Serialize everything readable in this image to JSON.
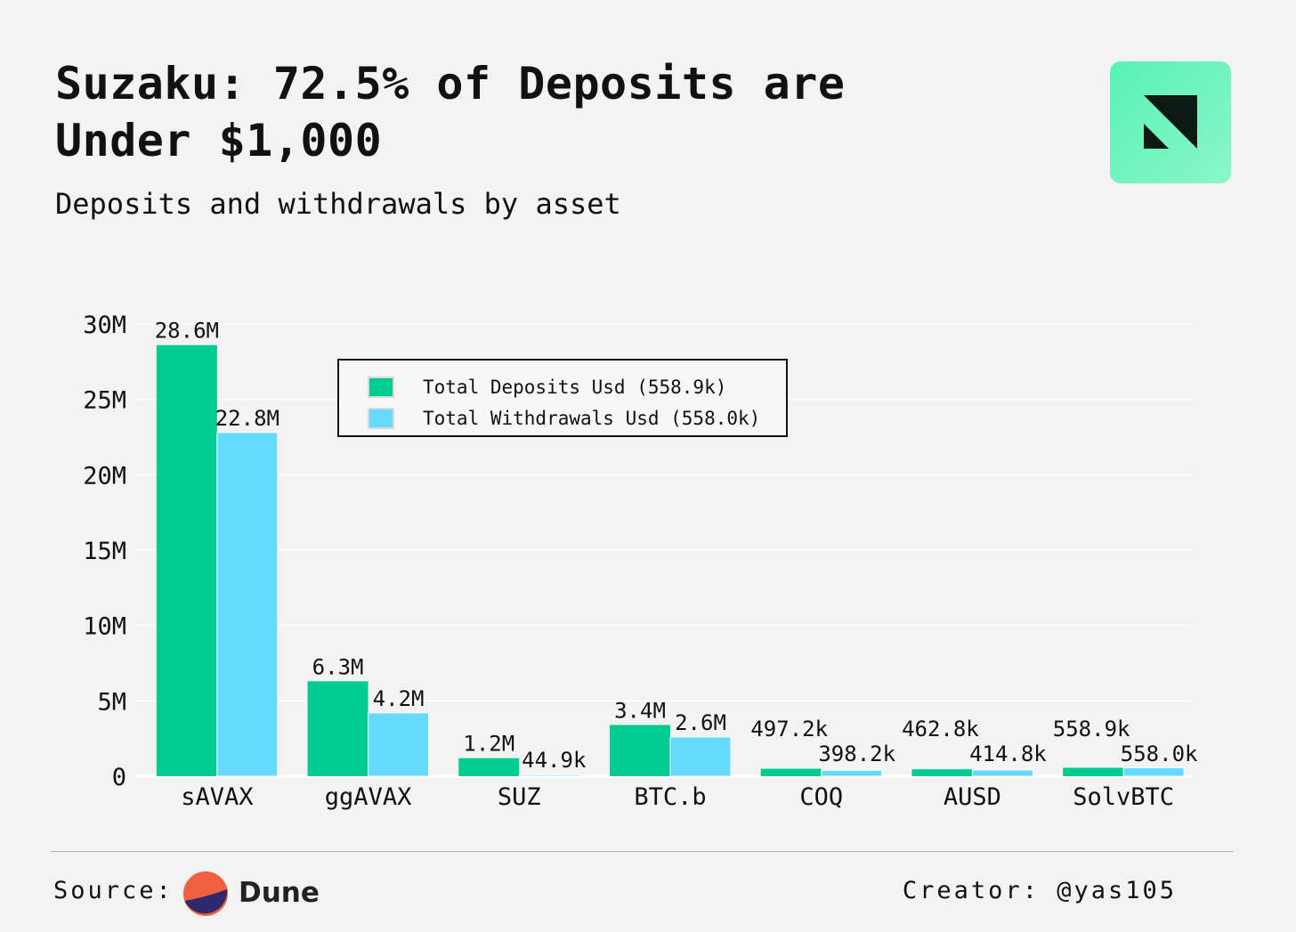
{
  "header": {
    "title": "Suzaku: 72.5% of Deposits are Under $1,000",
    "subtitle": "Deposits and withdrawals by asset",
    "logo_icon": "suzaku-logo-icon"
  },
  "legend": [
    {
      "label": "Total Deposits Usd (558.9k)",
      "color": "#00cc92"
    },
    {
      "label": "Total Withdrawals Usd (558.0k)",
      "color": "#66d9ff"
    }
  ],
  "footer": {
    "source_label": "Source:",
    "source_name": "Dune",
    "source_icon": "dune-logo-icon",
    "creator": "Creator: @yas105"
  },
  "chart_data": {
    "type": "bar",
    "title": "",
    "xlabel": "",
    "ylabel": "",
    "ylim": [
      0,
      30000000
    ],
    "yticks": [
      0,
      5000000,
      10000000,
      15000000,
      20000000,
      25000000,
      30000000
    ],
    "ytick_labels": [
      "0",
      "5M",
      "10M",
      "15M",
      "20M",
      "25M",
      "30M"
    ],
    "grid": "horizontal",
    "legend_position": "top-center",
    "categories": [
      "sAVAX",
      "ggAVAX",
      "SUZ",
      "BTC.b",
      "COQ",
      "AUSD",
      "SolvBTC"
    ],
    "series": [
      {
        "name": "Total Deposits Usd (558.9k)",
        "color": "#00cc92",
        "values": [
          28600000,
          6300000,
          1200000,
          3400000,
          497200,
          462800,
          558900
        ],
        "labels": [
          "28.6M",
          "6.3M",
          "1.2M",
          "3.4M",
          "497.2k",
          "462.8k",
          "558.9k"
        ]
      },
      {
        "name": "Total Withdrawals Usd (558.0k)",
        "color": "#66d9ff",
        "values": [
          22800000,
          4200000,
          44900,
          2600000,
          398200,
          414800,
          558000
        ],
        "labels": [
          "22.8M",
          "4.2M",
          "44.9k",
          "2.6M",
          "398.2k",
          "414.8k",
          "558.0k"
        ]
      }
    ]
  }
}
